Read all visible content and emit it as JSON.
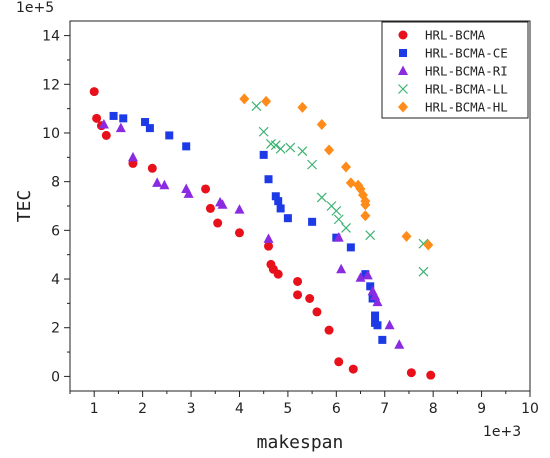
{
  "chart_data": {
    "type": "scatter",
    "xlabel": "makespan",
    "ylabel": "TEC",
    "x_multiplier_label": "1e+3",
    "y_multiplier_label": "1e+5",
    "xlim": [
      0.5,
      10
    ],
    "ylim": [
      -0.6,
      14.6
    ],
    "x_ticks": [
      1,
      2,
      3,
      4,
      5,
      6,
      7,
      8,
      9,
      10
    ],
    "y_ticks": [
      0,
      2,
      4,
      6,
      8,
      10,
      12,
      14
    ],
    "grid": false,
    "legend_position": "top-right",
    "series": [
      {
        "name": "HRL-BCMA",
        "color": "#e8101a",
        "marker": "circle",
        "points": [
          [
            1.0,
            11.7
          ],
          [
            1.05,
            10.6
          ],
          [
            1.15,
            10.3
          ],
          [
            1.25,
            9.9
          ],
          [
            1.8,
            8.75
          ],
          [
            2.2,
            8.55
          ],
          [
            3.3,
            7.7
          ],
          [
            3.4,
            6.9
          ],
          [
            3.55,
            6.3
          ],
          [
            4.0,
            5.9
          ],
          [
            4.6,
            5.35
          ],
          [
            4.65,
            4.6
          ],
          [
            4.7,
            4.4
          ],
          [
            4.8,
            4.2
          ],
          [
            5.2,
            3.9
          ],
          [
            5.2,
            3.35
          ],
          [
            5.45,
            3.2
          ],
          [
            5.6,
            2.65
          ],
          [
            5.85,
            1.9
          ],
          [
            6.05,
            0.6
          ],
          [
            6.35,
            0.3
          ],
          [
            7.55,
            0.15
          ],
          [
            7.95,
            0.05
          ]
        ]
      },
      {
        "name": "HRL-BCMA-CE",
        "color": "#1c3ae6",
        "marker": "square",
        "points": [
          [
            1.4,
            10.7
          ],
          [
            1.6,
            10.6
          ],
          [
            2.05,
            10.45
          ],
          [
            2.15,
            10.2
          ],
          [
            2.55,
            9.9
          ],
          [
            2.9,
            9.45
          ],
          [
            4.5,
            9.1
          ],
          [
            4.6,
            8.1
          ],
          [
            4.75,
            7.4
          ],
          [
            4.8,
            7.2
          ],
          [
            4.85,
            6.9
          ],
          [
            5.0,
            6.5
          ],
          [
            5.5,
            6.35
          ],
          [
            6.0,
            5.7
          ],
          [
            6.3,
            5.3
          ],
          [
            6.6,
            4.2
          ],
          [
            6.7,
            3.7
          ],
          [
            6.75,
            3.2
          ],
          [
            6.8,
            2.5
          ],
          [
            6.8,
            2.2
          ],
          [
            6.85,
            2.1
          ],
          [
            6.95,
            1.5
          ]
        ]
      },
      {
        "name": "HRL-BCMA-RI",
        "color": "#8a2be2",
        "marker": "triangle",
        "points": [
          [
            1.2,
            10.35
          ],
          [
            1.55,
            10.2
          ],
          [
            1.8,
            9.0
          ],
          [
            2.3,
            7.95
          ],
          [
            2.45,
            7.85
          ],
          [
            2.9,
            7.7
          ],
          [
            2.95,
            7.5
          ],
          [
            3.6,
            7.15
          ],
          [
            3.65,
            7.05
          ],
          [
            4.0,
            6.85
          ],
          [
            4.6,
            5.65
          ],
          [
            6.05,
            5.7
          ],
          [
            6.1,
            4.4
          ],
          [
            6.5,
            4.05
          ],
          [
            6.65,
            4.15
          ],
          [
            6.75,
            3.5
          ],
          [
            6.8,
            3.3
          ],
          [
            6.85,
            3.05
          ],
          [
            7.1,
            2.1
          ],
          [
            7.3,
            1.3
          ]
        ]
      },
      {
        "name": "HRL-BCMA-LL",
        "color": "#3cb371",
        "marker": "x",
        "points": [
          [
            4.35,
            11.1
          ],
          [
            4.5,
            10.05
          ],
          [
            4.65,
            9.55
          ],
          [
            4.75,
            9.5
          ],
          [
            4.85,
            9.35
          ],
          [
            5.05,
            9.4
          ],
          [
            5.3,
            9.25
          ],
          [
            5.5,
            8.7
          ],
          [
            5.7,
            7.35
          ],
          [
            5.9,
            7.0
          ],
          [
            6.0,
            6.8
          ],
          [
            6.05,
            6.45
          ],
          [
            6.2,
            6.1
          ],
          [
            6.7,
            5.8
          ],
          [
            7.8,
            5.45
          ],
          [
            7.8,
            4.3
          ]
        ]
      },
      {
        "name": "HRL-BCMA-HL",
        "color": "#ff8c1a",
        "marker": "diamond",
        "points": [
          [
            4.1,
            11.4
          ],
          [
            4.55,
            11.3
          ],
          [
            5.3,
            11.05
          ],
          [
            5.7,
            10.35
          ],
          [
            5.85,
            9.3
          ],
          [
            6.2,
            8.6
          ],
          [
            6.3,
            7.95
          ],
          [
            6.45,
            7.85
          ],
          [
            6.5,
            7.7
          ],
          [
            6.55,
            7.45
          ],
          [
            6.6,
            7.2
          ],
          [
            6.6,
            7.05
          ],
          [
            6.6,
            6.6
          ],
          [
            7.45,
            5.75
          ],
          [
            7.9,
            5.4
          ]
        ]
      }
    ]
  }
}
